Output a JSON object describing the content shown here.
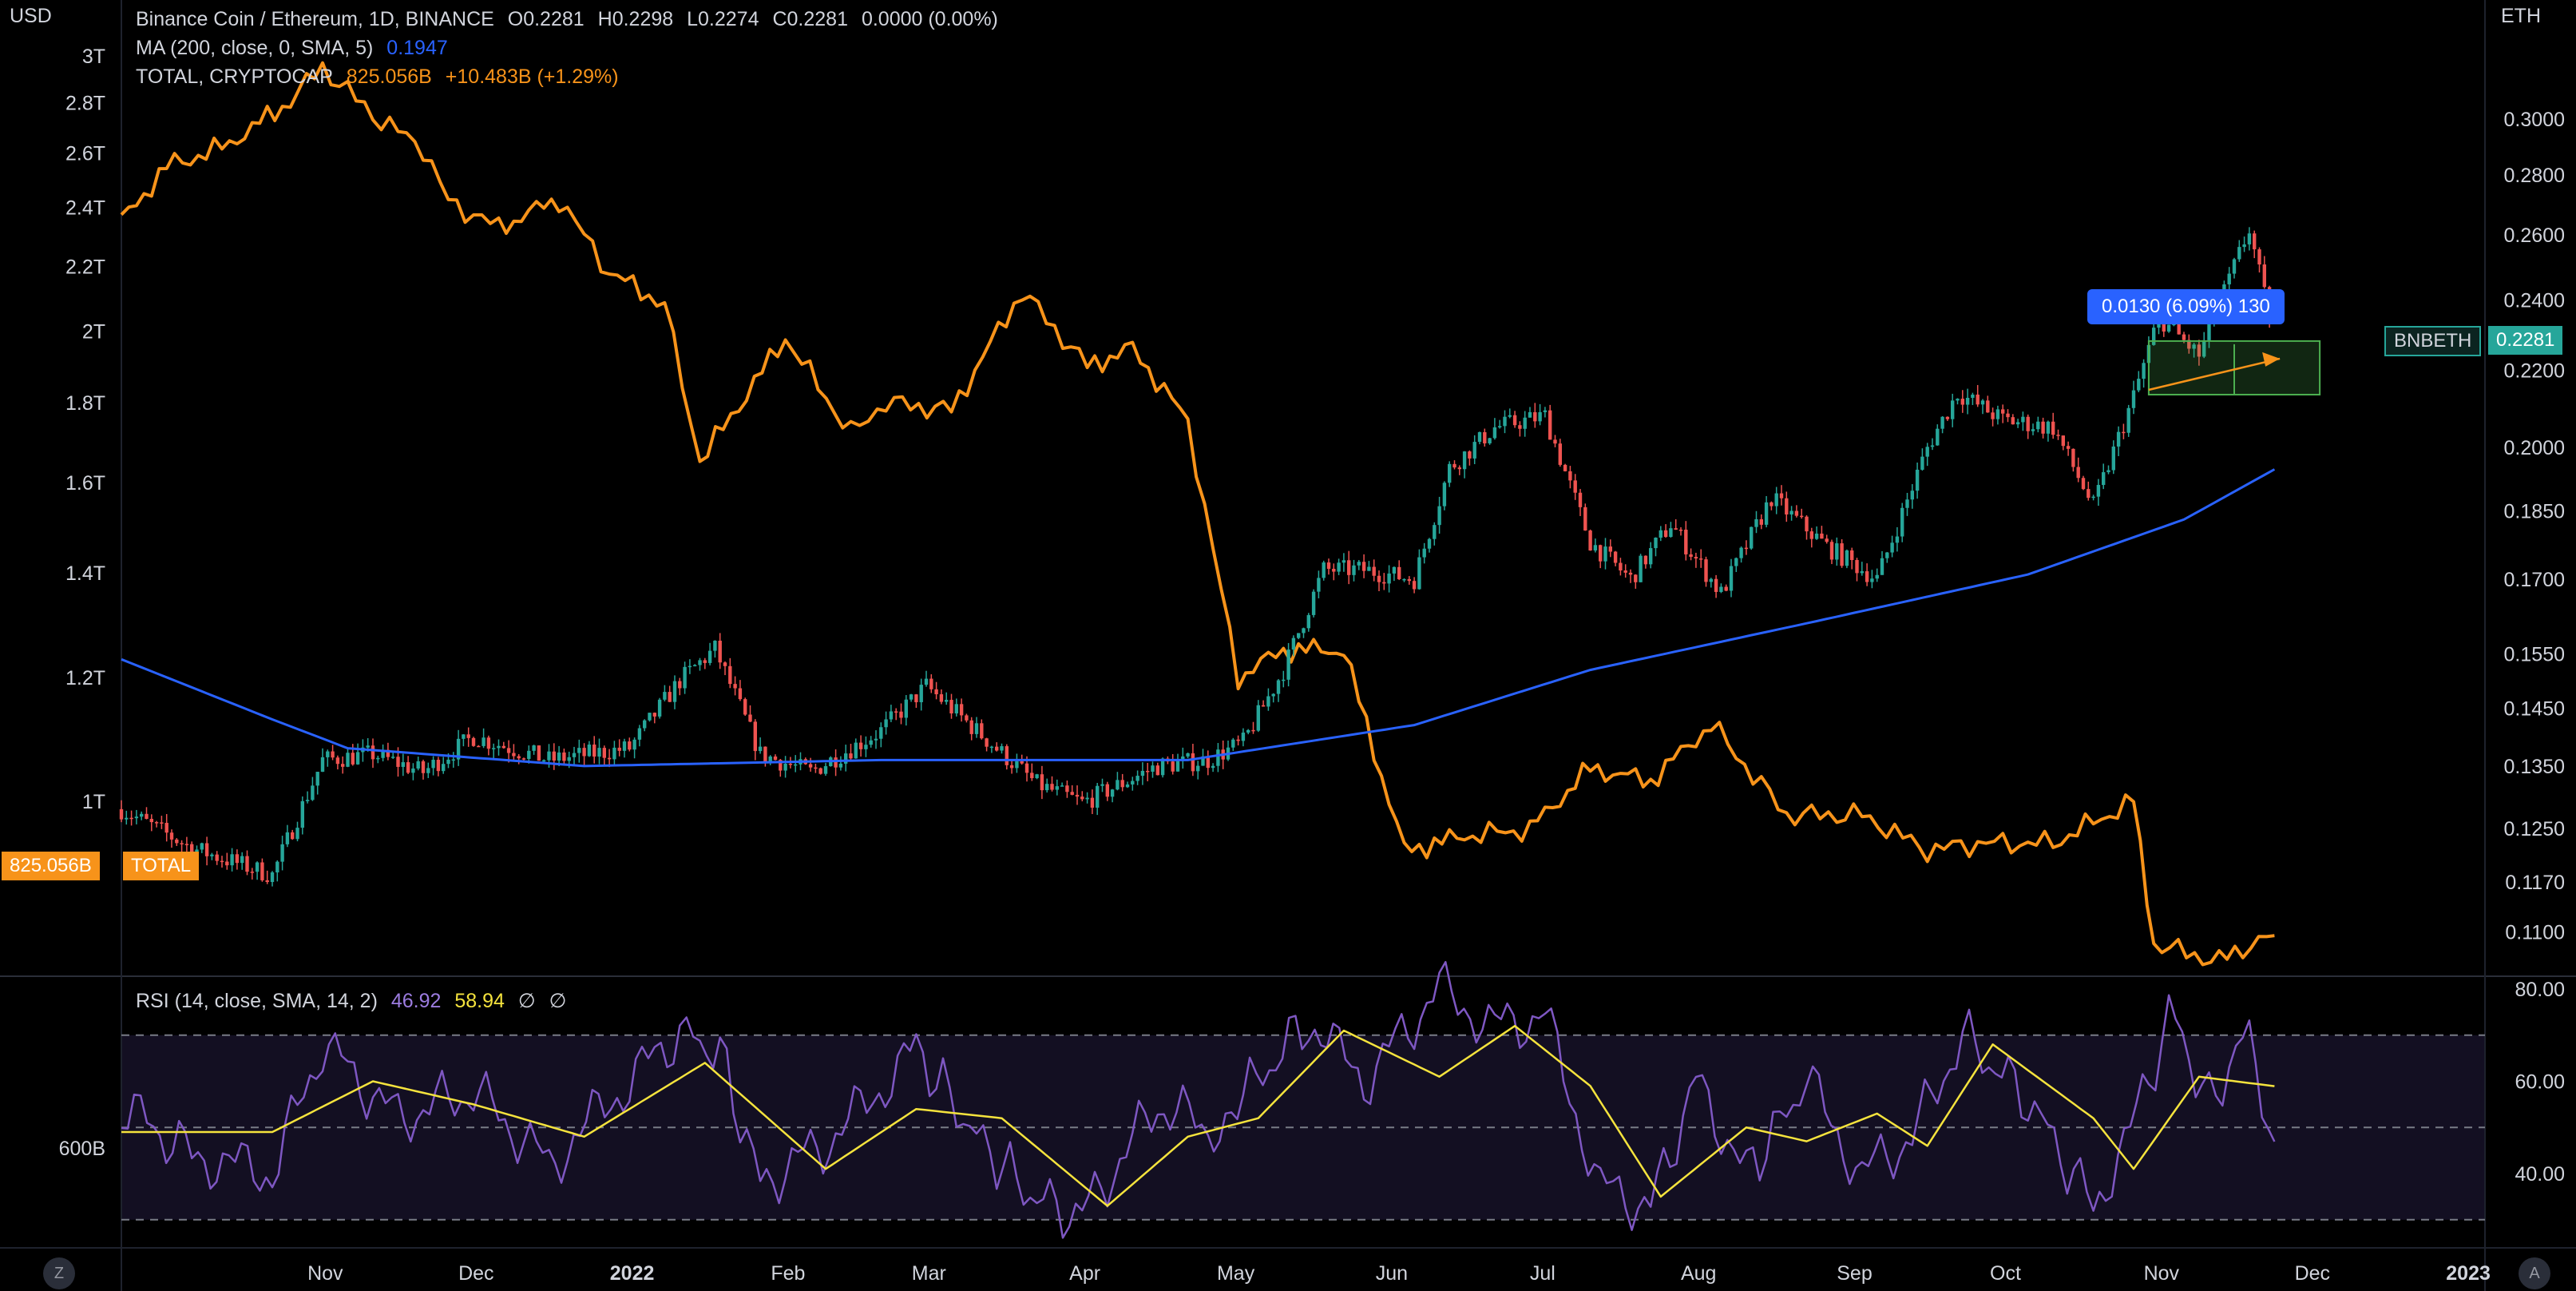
{
  "header": {
    "left_unit": "USD",
    "right_unit": "ETH",
    "main_title": "Binance Coin / Ethereum, 1D, BINANCE",
    "ohlc": {
      "O": "O0.2281",
      "H": "H0.2298",
      "L": "L0.2274",
      "C": "C0.2281",
      "change": "0.0000 (0.00%)"
    },
    "ma_label": "MA (200, close, 0, SMA, 5)",
    "ma_value": "0.1947",
    "total_label": "TOTAL, CRYPTOCAP",
    "total_value": "825.056B",
    "total_change": "+10.483B (+1.29%)"
  },
  "rsi_header": {
    "label": "RSI (14, close, SMA, 14, 2)",
    "rsi_value": "46.92",
    "sma_value": "58.94",
    "extra1": "∅",
    "extra2": "∅"
  },
  "tags": {
    "bnbeth_name": "BNBETH",
    "bnbeth_value": "0.2281",
    "total_value": "825.056B",
    "total_name": "TOTAL",
    "measure": "0.0130 (6.09%) 130"
  },
  "bottom_buttons": {
    "left": "Z",
    "right": "A"
  },
  "colors": {
    "background": "#000000",
    "candle_up": "#26a69a",
    "candle_down": "#ef5350",
    "total_line": "#f7931a",
    "ma_line": "#2962ff",
    "rsi_line": "#7e57c2",
    "rsi_sma": "#f5e33d",
    "measure_blue": "#2962ff",
    "measure_green": "#4caf50",
    "tag_teal": "#26a69a"
  },
  "chart_data": [
    {
      "type": "candlestick",
      "name": "BNBETH",
      "axis": "right",
      "scale": "log",
      "x_ticks": [
        "Nov",
        "Dec",
        "2022",
        "Feb",
        "Mar",
        "Apr",
        "May",
        "Jun",
        "Jul",
        "Aug",
        "Sep",
        "Oct",
        "Nov",
        "Dec",
        "2023"
      ],
      "y_ticks": [
        "0.3000",
        "0.2800",
        "0.2600",
        "0.2400",
        "0.2200",
        "0.2000",
        "0.1850",
        "0.1700",
        "0.1550",
        "0.1450",
        "0.1350",
        "0.1250",
        "0.1170",
        "0.1100"
      ],
      "close_path": [
        [
          "2021-10-01",
          0.128
        ],
        [
          "2021-10-15",
          0.122
        ],
        [
          "2021-10-31",
          0.118
        ],
        [
          "2021-11-10",
          0.136
        ],
        [
          "2021-11-20",
          0.137
        ],
        [
          "2021-11-30",
          0.134
        ],
        [
          "2021-12-10",
          0.14
        ],
        [
          "2021-12-25",
          0.136
        ],
        [
          "2022-01-10",
          0.138
        ],
        [
          "2022-01-20",
          0.15
        ],
        [
          "2022-01-27",
          0.156
        ],
        [
          "2022-02-05",
          0.137
        ],
        [
          "2022-02-15",
          0.134
        ],
        [
          "2022-03-01",
          0.141
        ],
        [
          "2022-03-10",
          0.149
        ],
        [
          "2022-03-20",
          0.141
        ],
        [
          "2022-04-01",
          0.132
        ],
        [
          "2022-04-10",
          0.129
        ],
        [
          "2022-04-25",
          0.135
        ],
        [
          "2022-05-05",
          0.136
        ],
        [
          "2022-05-12",
          0.139
        ],
        [
          "2022-05-20",
          0.152
        ],
        [
          "2022-05-28",
          0.172
        ],
        [
          "2022-06-05",
          0.172
        ],
        [
          "2022-06-15",
          0.17
        ],
        [
          "2022-06-22",
          0.195
        ],
        [
          "2022-07-01",
          0.205
        ],
        [
          "2022-07-11",
          0.208
        ],
        [
          "2022-07-20",
          0.178
        ],
        [
          "2022-07-28",
          0.17
        ],
        [
          "2022-08-05",
          0.182
        ],
        [
          "2022-08-15",
          0.167
        ],
        [
          "2022-08-25",
          0.188
        ],
        [
          "2022-09-05",
          0.177
        ],
        [
          "2022-09-15",
          0.17
        ],
        [
          "2022-09-25",
          0.2
        ],
        [
          "2022-10-01",
          0.214
        ],
        [
          "2022-10-10",
          0.207
        ],
        [
          "2022-10-20",
          0.205
        ],
        [
          "2022-10-28",
          0.186
        ],
        [
          "2022-11-05",
          0.213
        ],
        [
          "2022-11-10",
          0.235
        ],
        [
          "2022-11-18",
          0.224
        ],
        [
          "2022-11-28",
          0.262
        ],
        [
          "2022-12-03",
          0.2281
        ]
      ]
    },
    {
      "type": "line",
      "name": "MA (200, close, 0, SMA, 5)",
      "axis": "right",
      "points": [
        [
          "2021-10-01",
          0.154
        ],
        [
          "2021-10-31",
          0.143
        ],
        [
          "2021-11-15",
          0.138
        ],
        [
          "2022-01-01",
          0.135
        ],
        [
          "2022-03-01",
          0.136
        ],
        [
          "2022-05-01",
          0.136
        ],
        [
          "2022-06-15",
          0.142
        ],
        [
          "2022-07-20",
          0.152
        ],
        [
          "2022-09-01",
          0.161
        ],
        [
          "2022-10-15",
          0.171
        ],
        [
          "2022-11-15",
          0.183
        ],
        [
          "2022-12-03",
          0.1947
        ]
      ]
    },
    {
      "type": "line",
      "name": "TOTAL, CRYPTOCAP",
      "axis": "left",
      "y_ticks": [
        "3T",
        "2.8T",
        "2.6T",
        "2.4T",
        "2.2T",
        "2T",
        "1.8T",
        "1.6T",
        "1.4T",
        "1.2T",
        "1T",
        "600B"
      ],
      "points": [
        [
          "2021-10-01",
          2.35
        ],
        [
          "2021-10-10",
          2.55
        ],
        [
          "2021-10-21",
          2.62
        ],
        [
          "2021-11-02",
          2.78
        ],
        [
          "2021-11-10",
          2.95
        ],
        [
          "2021-11-20",
          2.75
        ],
        [
          "2021-11-30",
          2.62
        ],
        [
          "2021-12-05",
          2.42
        ],
        [
          "2021-12-15",
          2.33
        ],
        [
          "2021-12-27",
          2.43
        ],
        [
          "2022-01-06",
          2.18
        ],
        [
          "2022-01-17",
          2.08
        ],
        [
          "2022-01-24",
          1.65
        ],
        [
          "2022-02-10",
          1.98
        ],
        [
          "2022-02-23",
          1.72
        ],
        [
          "2022-03-02",
          1.8
        ],
        [
          "2022-03-15",
          1.78
        ],
        [
          "2022-03-29",
          2.12
        ],
        [
          "2022-04-11",
          1.9
        ],
        [
          "2022-04-20",
          1.95
        ],
        [
          "2022-05-01",
          1.75
        ],
        [
          "2022-05-11",
          1.2
        ],
        [
          "2022-05-20",
          1.25
        ],
        [
          "2022-06-01",
          1.25
        ],
        [
          "2022-06-13",
          0.93
        ],
        [
          "2022-06-25",
          0.95
        ],
        [
          "2022-07-08",
          0.96
        ],
        [
          "2022-07-20",
          1.05
        ],
        [
          "2022-08-01",
          1.03
        ],
        [
          "2022-08-13",
          1.12
        ],
        [
          "2022-08-28",
          0.98
        ],
        [
          "2022-09-12",
          0.98
        ],
        [
          "2022-09-25",
          0.93
        ],
        [
          "2022-10-05",
          0.94
        ],
        [
          "2022-10-20",
          0.94
        ],
        [
          "2022-11-05",
          1.0
        ],
        [
          "2022-11-09",
          0.81
        ],
        [
          "2022-11-22",
          0.79
        ],
        [
          "2022-12-03",
          0.825
        ]
      ]
    },
    {
      "type": "line",
      "name": "RSI (14, close, SMA, 14, 2)",
      "y_ticks": [
        "80.00",
        "60.00",
        "40.00"
      ],
      "bands": [
        30,
        50,
        70
      ],
      "rsi_points": [
        [
          "2021-10-01",
          55
        ],
        [
          "2021-10-15",
          44
        ],
        [
          "2021-10-31",
          40
        ],
        [
          "2021-11-10",
          68
        ],
        [
          "2021-11-25",
          52
        ],
        [
          "2021-12-10",
          58
        ],
        [
          "2021-12-25",
          42
        ],
        [
          "2022-01-10",
          60
        ],
        [
          "2022-01-20",
          71
        ],
        [
          "2022-01-28",
          66
        ],
        [
          "2022-02-05",
          38
        ],
        [
          "2022-02-20",
          48
        ],
        [
          "2022-03-08",
          67
        ],
        [
          "2022-03-20",
          48
        ],
        [
          "2022-04-01",
          34
        ],
        [
          "2022-04-10",
          31
        ],
        [
          "2022-04-25",
          55
        ],
        [
          "2022-05-05",
          50
        ],
        [
          "2022-05-12",
          57
        ],
        [
          "2022-05-25",
          73
        ],
        [
          "2022-06-05",
          60
        ],
        [
          "2022-06-20",
          80
        ],
        [
          "2022-07-01",
          72
        ],
        [
          "2022-07-11",
          74
        ],
        [
          "2022-07-22",
          37
        ],
        [
          "2022-08-01",
          33
        ],
        [
          "2022-08-10",
          60
        ],
        [
          "2022-08-20",
          40
        ],
        [
          "2022-09-01",
          60
        ],
        [
          "2022-09-12",
          40
        ],
        [
          "2022-09-22",
          48
        ],
        [
          "2022-10-02",
          70
        ],
        [
          "2022-10-15",
          56
        ],
        [
          "2022-10-28",
          33
        ],
        [
          "2022-11-08",
          58
        ],
        [
          "2022-11-12",
          76
        ],
        [
          "2022-11-20",
          55
        ],
        [
          "2022-11-28",
          71
        ],
        [
          "2022-12-03",
          46.92
        ]
      ],
      "sma_points": [
        [
          "2021-10-01",
          49
        ],
        [
          "2021-10-31",
          49
        ],
        [
          "2021-11-20",
          60
        ],
        [
          "2021-12-10",
          55
        ],
        [
          "2022-01-01",
          48
        ],
        [
          "2022-01-25",
          64
        ],
        [
          "2022-02-18",
          41
        ],
        [
          "2022-03-08",
          54
        ],
        [
          "2022-03-25",
          52
        ],
        [
          "2022-04-15",
          33
        ],
        [
          "2022-05-01",
          48
        ],
        [
          "2022-05-15",
          52
        ],
        [
          "2022-06-01",
          71
        ],
        [
          "2022-06-20",
          61
        ],
        [
          "2022-07-05",
          72
        ],
        [
          "2022-07-20",
          59
        ],
        [
          "2022-08-03",
          35
        ],
        [
          "2022-08-20",
          50
        ],
        [
          "2022-09-01",
          47
        ],
        [
          "2022-09-15",
          53
        ],
        [
          "2022-09-25",
          46
        ],
        [
          "2022-10-08",
          68
        ],
        [
          "2022-10-28",
          52
        ],
        [
          "2022-11-05",
          41
        ],
        [
          "2022-11-18",
          61
        ],
        [
          "2022-12-03",
          58.94
        ]
      ]
    }
  ]
}
